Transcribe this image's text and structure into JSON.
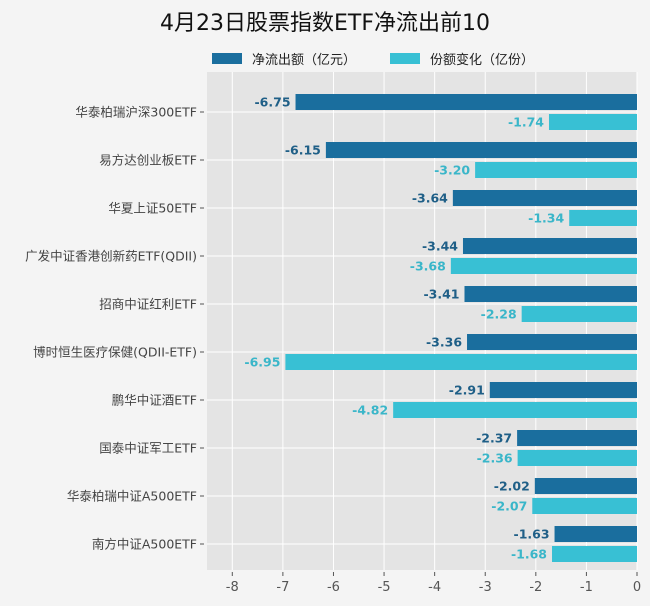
{
  "chart_data": {
    "type": "bar",
    "orientation": "horizontal",
    "title": "4月23日股票指数ETF净流出前10",
    "categories": [
      "华泰柏瑞沪深300ETF",
      "易方达创业板ETF",
      "华夏上证50ETF",
      "广发中证香港创新药ETF(QDII)",
      "招商中证红利ETF",
      "博时恒生医疗保健(QDII-ETF)",
      "鹏华中证酒ETF",
      "国泰中证军工ETF",
      "华泰柏瑞中证A500ETF",
      "南方中证A500ETF"
    ],
    "series": [
      {
        "name": "净流出额（亿元）",
        "color": "#1a6e9e",
        "values": [
          -6.75,
          -6.15,
          -3.64,
          -3.44,
          -3.41,
          -3.36,
          -2.91,
          -2.37,
          -2.02,
          -1.63
        ]
      },
      {
        "name": "份额变化（亿份）",
        "color": "#38c0d4",
        "values": [
          -1.74,
          -3.2,
          -1.34,
          -3.68,
          -2.28,
          -6.95,
          -4.82,
          -2.36,
          -2.07,
          -1.68
        ]
      }
    ],
    "xlim": [
      -8.5,
      0
    ],
    "xticks": [
      -8,
      -7,
      -6,
      -5,
      -4,
      -3,
      -2,
      -1,
      0
    ],
    "grid": true,
    "legend": "top"
  }
}
